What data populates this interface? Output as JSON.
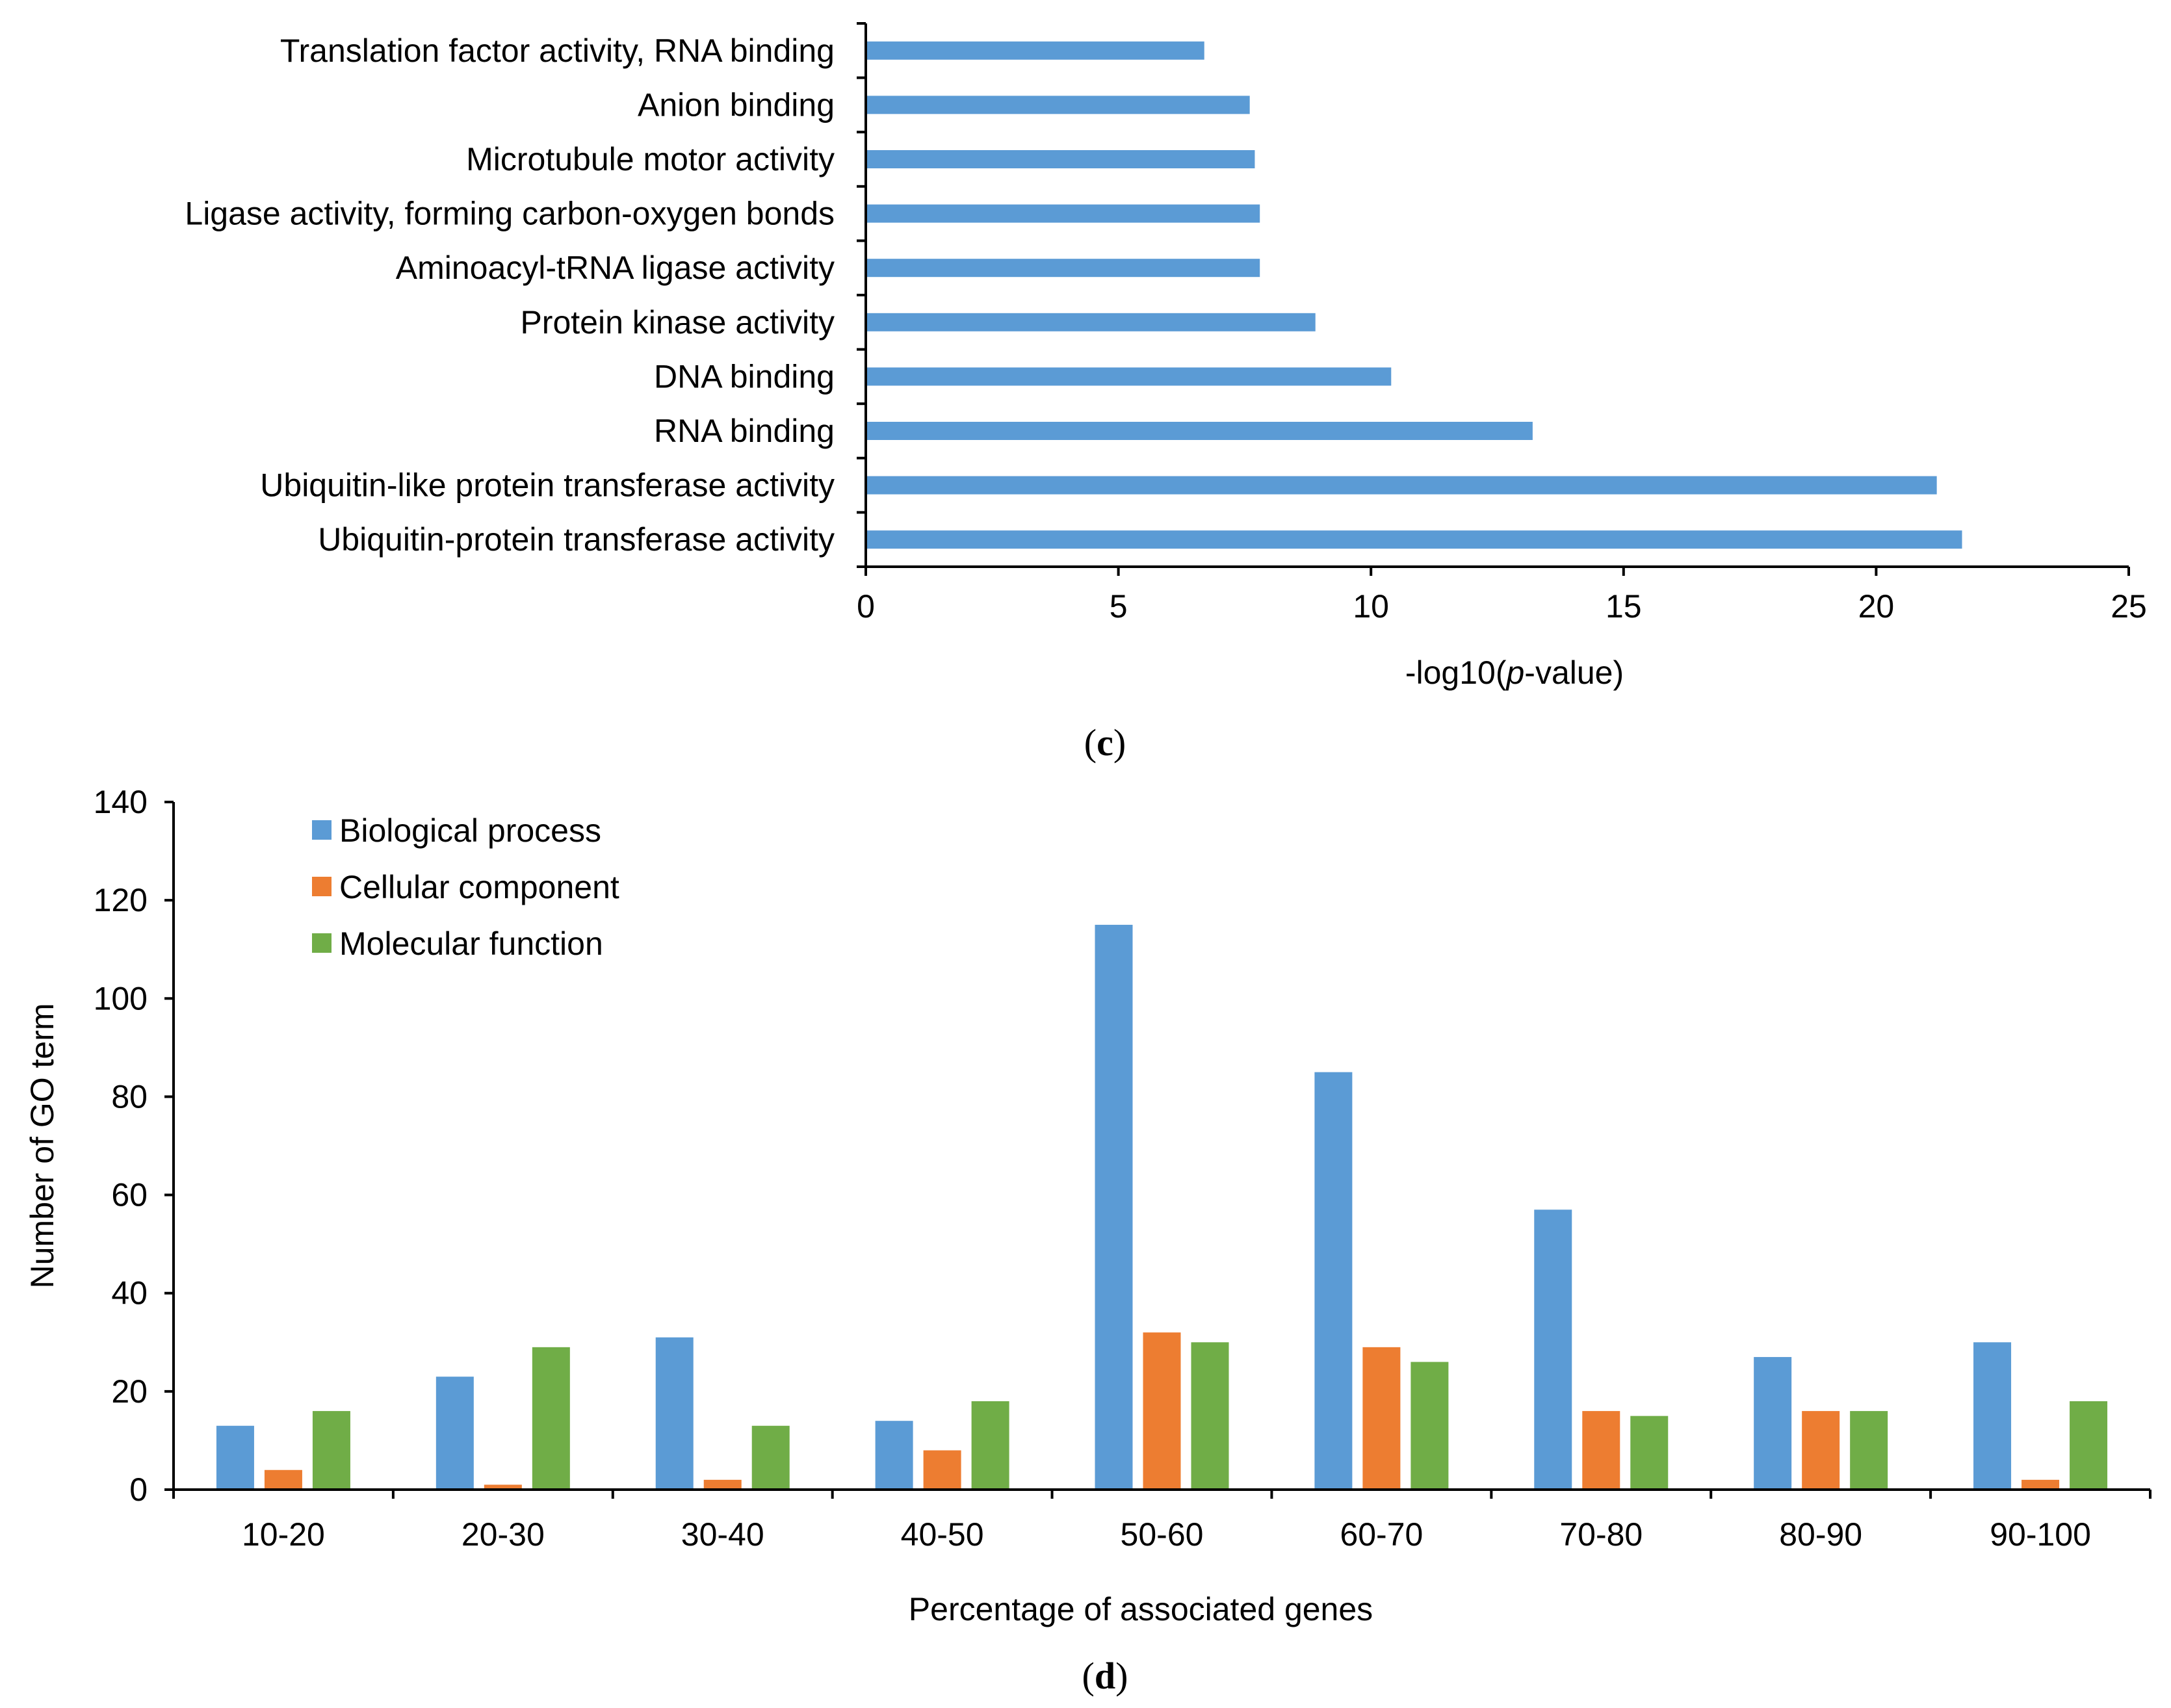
{
  "colors": {
    "blue": "#5B9BD5",
    "orange": "#ED7D31",
    "green": "#70AD47",
    "axis": "#000000"
  },
  "chart_data": [
    {
      "type": "bar",
      "orientation": "horizontal",
      "panel_label": {
        "open": "(",
        "letter": "c",
        "close": ")"
      },
      "categories": [
        "Translation factor activity, RNA binding",
        "Anion binding",
        "Microtubule motor activity",
        "Ligase activity, forming carbon-oxygen bonds",
        "Aminoacyl-tRNA ligase activity",
        "Protein kinase activity",
        "DNA binding",
        "RNA binding",
        "Ubiquitin-like protein transferase activity",
        "Ubiquitin-protein transferase activity"
      ],
      "values": [
        6.7,
        7.6,
        7.7,
        7.8,
        7.8,
        8.9,
        10.4,
        13.2,
        21.2,
        21.7
      ],
      "xlabel": {
        "prefix": "-log10(",
        "italic": "p",
        "suffix": "-value)"
      },
      "ylabel": "",
      "xlim": [
        0,
        25
      ],
      "xticks": [
        "0",
        "5",
        "10",
        "15",
        "20",
        "25"
      ],
      "grid": false,
      "legend": null
    },
    {
      "type": "bar",
      "orientation": "vertical",
      "panel_label": {
        "open": "(",
        "letter": "d",
        "close": ")"
      },
      "categories": [
        "10-20",
        "20-30",
        "30-40",
        "40-50",
        "50-60",
        "60-70",
        "70-80",
        "80-90",
        "90-100"
      ],
      "series": [
        {
          "name": "Biological process",
          "color": "#5B9BD5",
          "values": [
            13,
            23,
            31,
            14,
            115,
            85,
            57,
            27,
            30
          ]
        },
        {
          "name": "Cellular component",
          "color": "#ED7D31",
          "values": [
            4,
            1,
            2,
            8,
            32,
            29,
            16,
            16,
            2
          ]
        },
        {
          "name": "Molecular function",
          "color": "#70AD47",
          "values": [
            16,
            29,
            13,
            18,
            30,
            26,
            15,
            16,
            18
          ]
        }
      ],
      "xlabel": "Percentage of associated genes",
      "ylabel": "Number of GO term",
      "ylim": [
        0,
        140
      ],
      "yticks": [
        "0",
        "20",
        "40",
        "60",
        "80",
        "100",
        "120",
        "140"
      ],
      "grid": false,
      "legend": "top-left"
    }
  ]
}
